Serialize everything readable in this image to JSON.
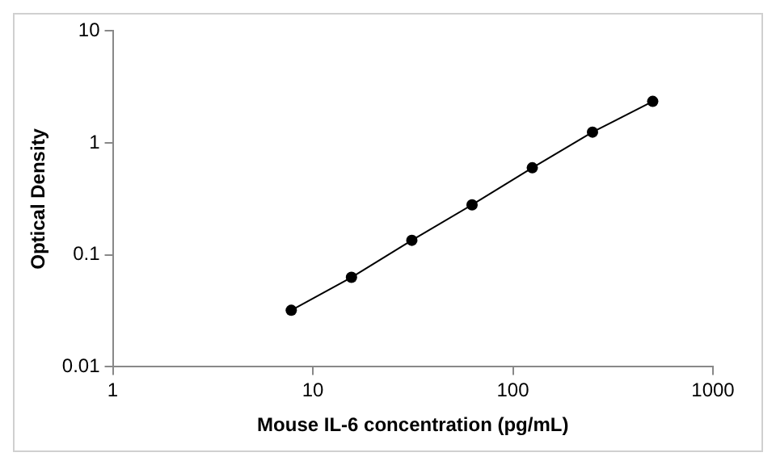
{
  "chart_data": {
    "type": "line",
    "xlabel": "Mouse IL-6 concentration (pg/mL)",
    "ylabel": "Optical Density",
    "x": [
      7.8,
      15.6,
      31.25,
      62.5,
      125,
      250,
      500
    ],
    "series": [
      {
        "color": "#000000",
        "values": [
          0.032,
          0.063,
          0.135,
          0.28,
          0.6,
          1.25,
          2.35
        ]
      }
    ],
    "log": "xy",
    "xlim": [
      1,
      1000
    ],
    "xticks": [
      1,
      10,
      100,
      1000
    ],
    "ylim": [
      0.01,
      10
    ],
    "yticks": [
      0.01,
      0.1,
      1,
      10
    ],
    "grid": false,
    "legend": false,
    "marker": "circle",
    "line_style": "solid"
  }
}
